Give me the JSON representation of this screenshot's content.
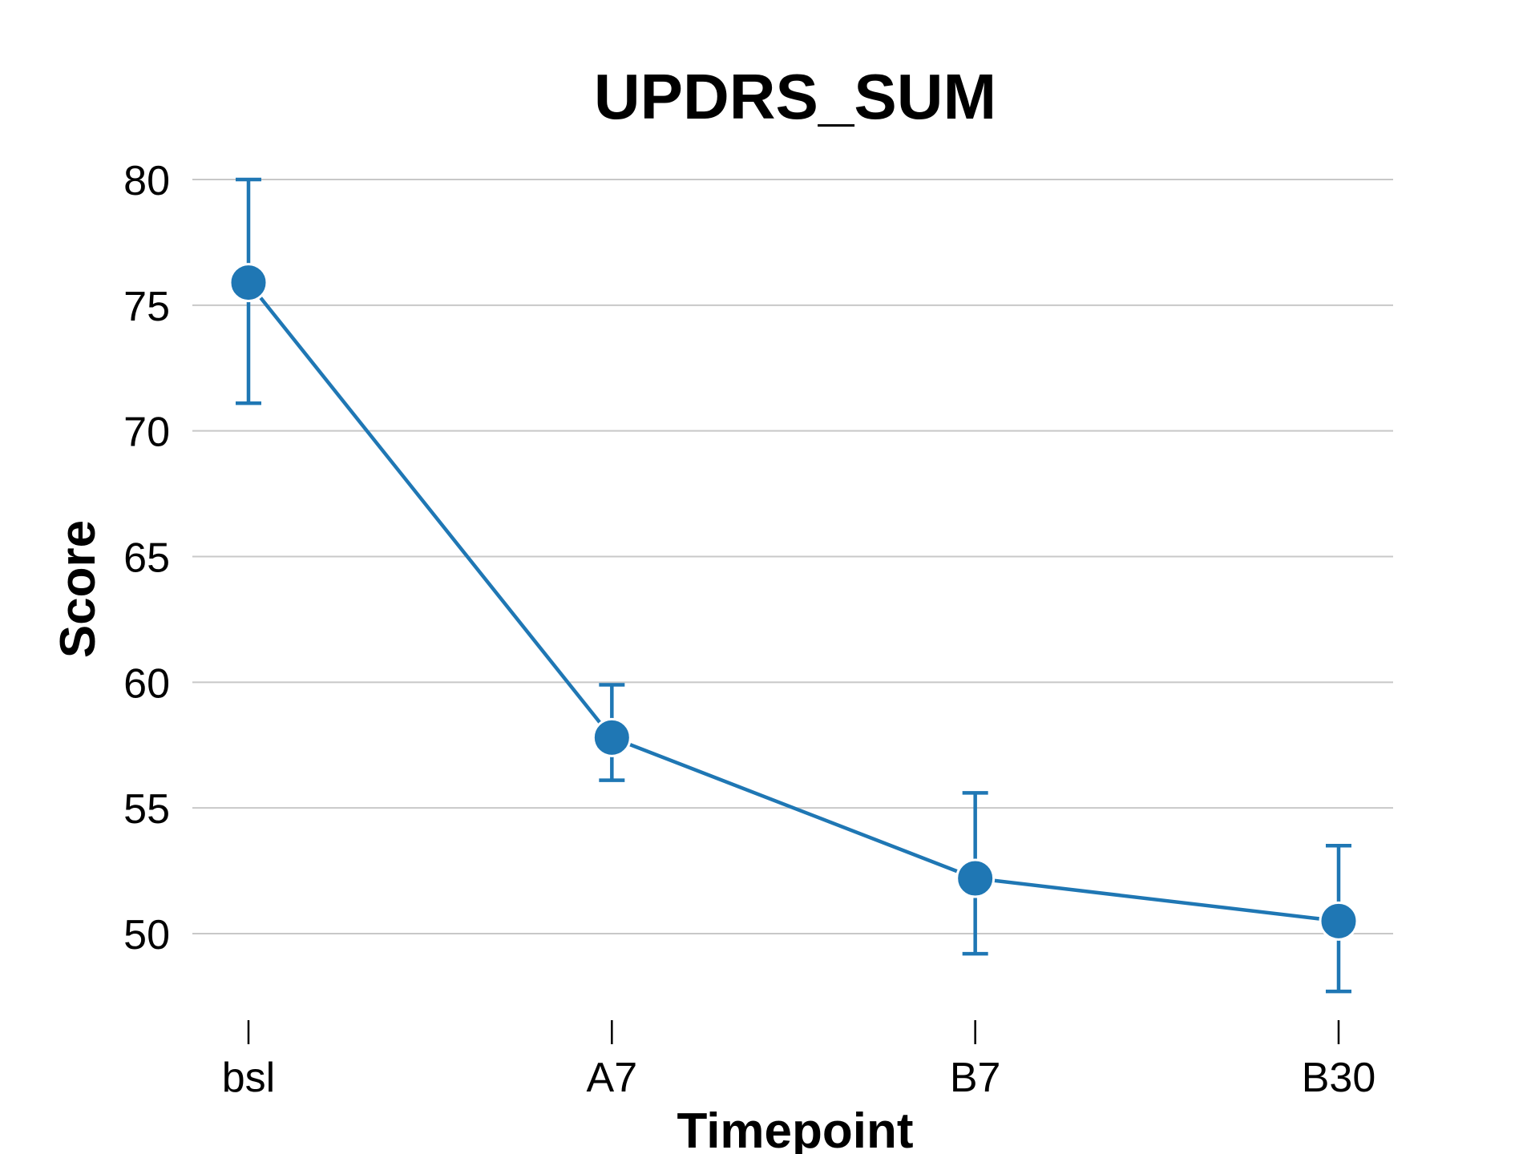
{
  "chart_data": {
    "type": "line",
    "title": "UPDRS_SUM",
    "xlabel": "Timepoint",
    "ylabel": "Score",
    "categories": [
      "bsl",
      "A7",
      "B7",
      "B30"
    ],
    "series": [
      {
        "values": [
          75.9,
          57.8,
          52.2,
          50.5
        ],
        "error_low": [
          71.1,
          56.1,
          49.2,
          47.7
        ],
        "error_high": [
          80.0,
          59.9,
          55.6,
          53.5
        ]
      }
    ],
    "ylim": [
      47.5,
      81
    ],
    "yticks": [
      50,
      55,
      60,
      65,
      70,
      75,
      80
    ],
    "grid": "horizontal",
    "legend": "none",
    "colors": {
      "series": "#1f77b4",
      "grid": "#c8c8c8"
    }
  }
}
